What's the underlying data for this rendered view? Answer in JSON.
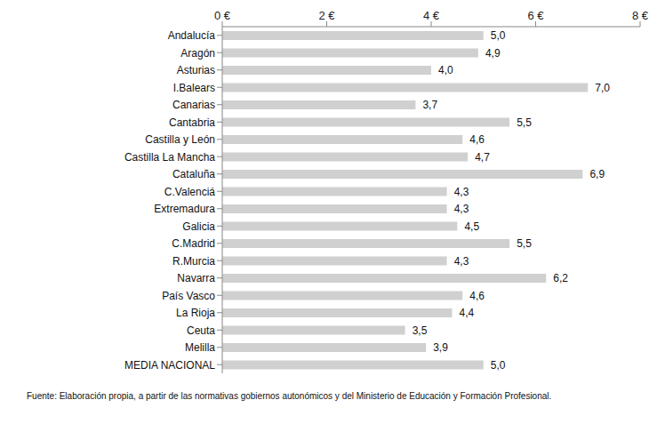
{
  "chart_data": {
    "type": "bar",
    "orientation": "horizontal",
    "categories": [
      "Andalucía",
      "Aragón",
      "Asturias",
      "I.Balears",
      "Canarias",
      "Cantabria",
      "Castilla y León",
      "Castilla La Mancha",
      "Cataluña",
      "C.Valenciá",
      "Extremadura",
      "Galicia",
      "C.Madrid",
      "R.Murcia",
      "Navarra",
      "País Vasco",
      "La Rioja",
      "Ceuta",
      "Melilla",
      "MEDIA NACIONAL"
    ],
    "values": [
      5.0,
      4.9,
      4.0,
      7.0,
      3.7,
      5.5,
      4.6,
      4.7,
      6.9,
      4.3,
      4.3,
      4.5,
      5.5,
      4.3,
      6.2,
      4.6,
      4.4,
      3.5,
      3.9,
      5.0
    ],
    "value_labels": [
      "5,0",
      "4,9",
      "4,0",
      "7,0",
      "3,7",
      "5,5",
      "4,6",
      "4,7",
      "6,9",
      "4,3",
      "4,3",
      "4,5",
      "5,5",
      "4,3",
      "6,2",
      "4,6",
      "4,4",
      "3,5",
      "3,9",
      "5,0"
    ],
    "data_labels": true,
    "color": "#d0d0d0",
    "xlim": [
      0,
      8
    ],
    "xticks": [
      {
        "value": 0,
        "label": "0 €"
      },
      {
        "value": 2,
        "label": "2 €"
      },
      {
        "value": 4,
        "label": "4 €"
      },
      {
        "value": 6,
        "label": "6 €"
      },
      {
        "value": 8,
        "label": "8 €"
      }
    ],
    "grid": false,
    "annotations": [
      "Fuente: Elaboración propia, a partir de las normativas gobiernos autonómicos y del Ministerio de Educación y Formación Profesional."
    ]
  }
}
